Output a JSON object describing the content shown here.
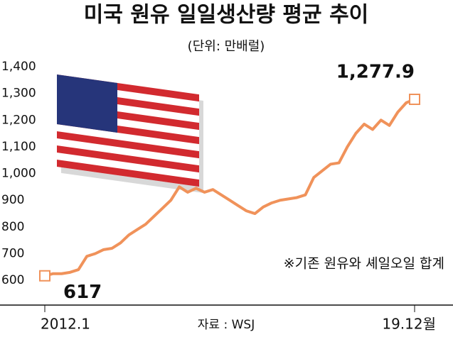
{
  "chart_data": {
    "type": "line",
    "title": "미국 원유 일일생산량 평균 추이",
    "subtitle": "(단위: 만배럴)",
    "annotation": "※기존 원유와 셰일오일 합계",
    "source": "자료 : WSJ",
    "categories": [
      "2012.1",
      null,
      null,
      null,
      null,
      null,
      null,
      null,
      null,
      null,
      null,
      null,
      null,
      null,
      null,
      null,
      null,
      null,
      null,
      null,
      null,
      null,
      null,
      null,
      null,
      null,
      null,
      null,
      null,
      null,
      null,
      null,
      null,
      null,
      null,
      null,
      null,
      null,
      null,
      null,
      null,
      null,
      null,
      null,
      "19.12월"
    ],
    "values": [
      617,
      625,
      625,
      630,
      640,
      690,
      700,
      715,
      720,
      740,
      770,
      790,
      810,
      840,
      870,
      900,
      950,
      930,
      945,
      930,
      940,
      920,
      900,
      880,
      860,
      850,
      875,
      890,
      900,
      905,
      910,
      920,
      985,
      1010,
      1035,
      1040,
      1100,
      1150,
      1185,
      1165,
      1200,
      1180,
      1230,
      1265,
      1277.9
    ],
    "value_labels": [
      "617",
      null,
      null,
      null,
      null,
      null,
      null,
      null,
      null,
      null,
      null,
      null,
      null,
      null,
      null,
      null,
      null,
      null,
      null,
      null,
      null,
      null,
      null,
      null,
      null,
      null,
      null,
      null,
      null,
      null,
      null,
      null,
      null,
      null,
      null,
      null,
      null,
      null,
      null,
      null,
      null,
      null,
      null,
      null,
      "1,277.9"
    ],
    "color": "#f0925a",
    "ylim": [
      510,
      1440
    ],
    "yticks": [
      600,
      700,
      800,
      900,
      {
        "value": 1000,
        "label": "1,000"
      },
      {
        "value": 1100,
        "label": "1,100"
      },
      {
        "value": 1200,
        "label": "1,200"
      },
      {
        "value": 1300,
        "label": "1,300"
      },
      {
        "value": 1400,
        "label": "1,400"
      }
    ],
    "grid": false
  }
}
